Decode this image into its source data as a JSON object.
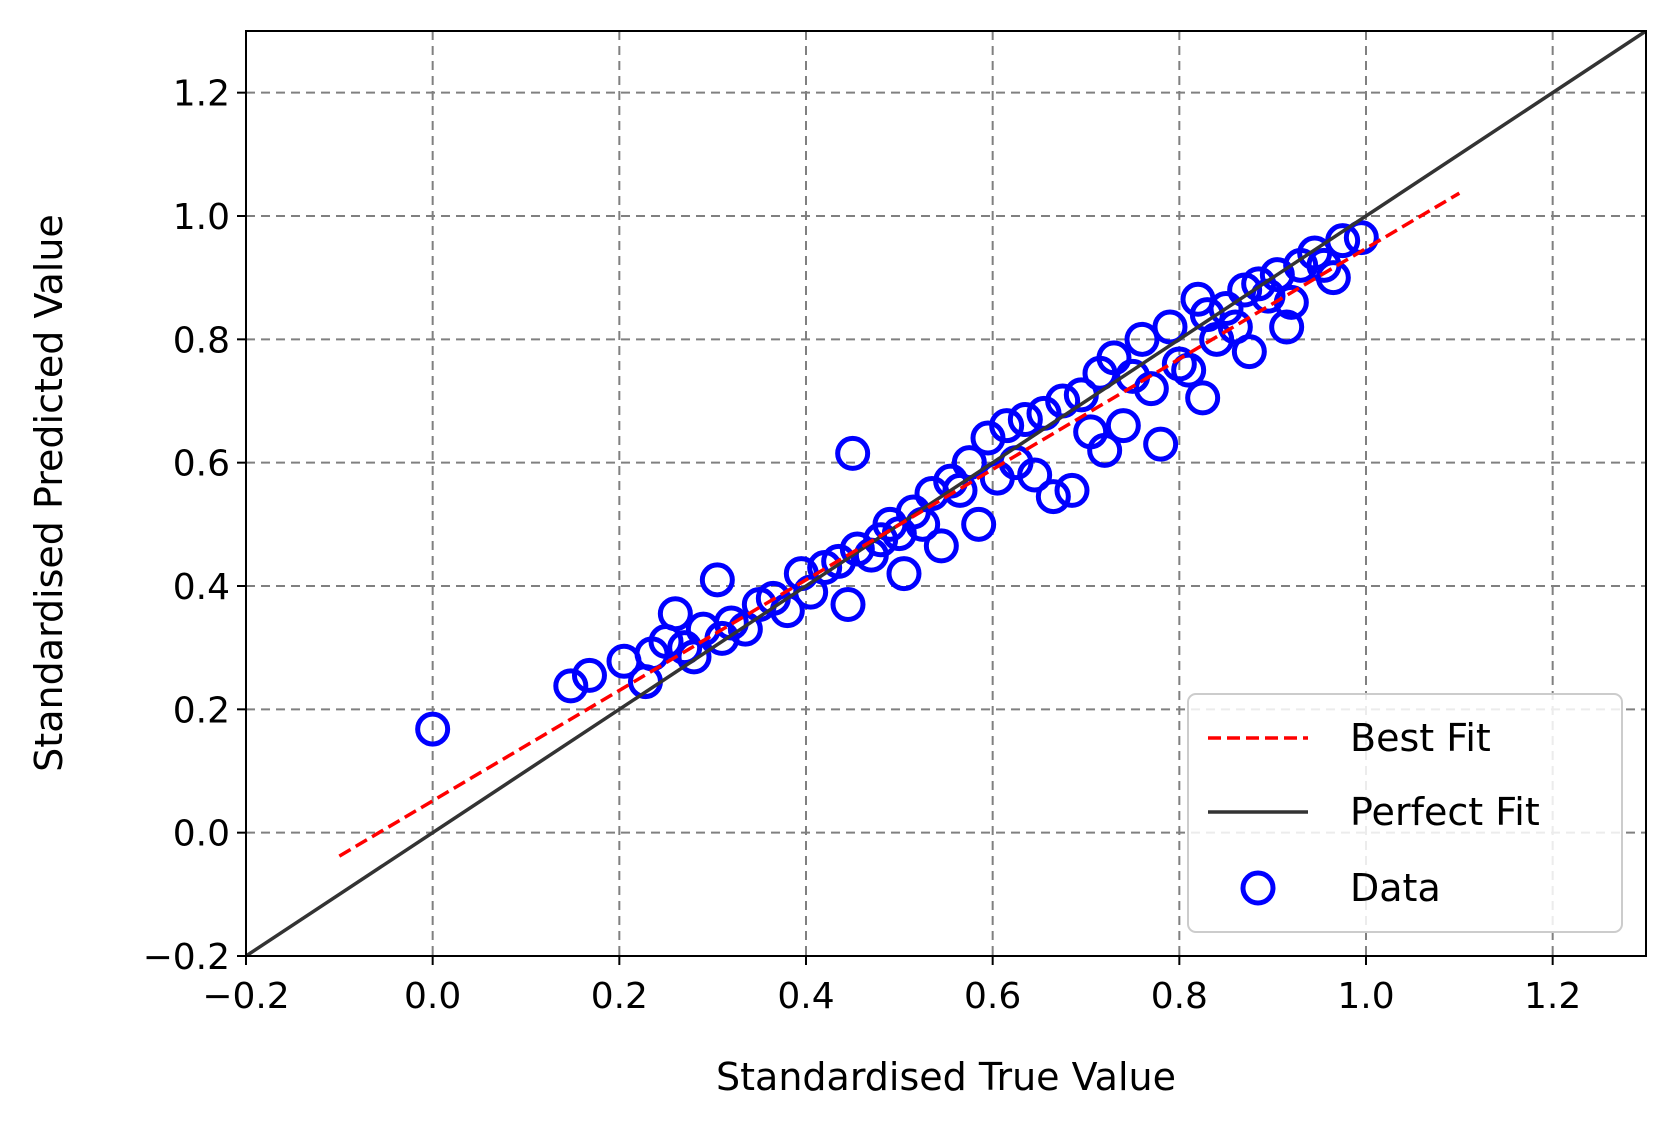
{
  "chart_data": {
    "type": "scatter",
    "xlabel": "Standardised True Value",
    "ylabel": "Standardised Predicted Value",
    "xlim": [
      -0.2,
      1.3
    ],
    "ylim": [
      -0.2,
      1.3
    ],
    "xticks": [
      -0.2,
      0.0,
      0.2,
      0.4,
      0.6,
      0.8,
      1.0,
      1.2
    ],
    "yticks": [
      -0.2,
      0.0,
      0.2,
      0.4,
      0.6,
      0.8,
      1.0,
      1.2
    ],
    "xtick_labels": [
      "−0.2",
      "0.0",
      "0.2",
      "0.4",
      "0.6",
      "0.8",
      "1.0",
      "1.2"
    ],
    "ytick_labels": [
      "−0.2",
      "0.0",
      "0.2",
      "0.4",
      "0.6",
      "0.8",
      "1.0",
      "1.2"
    ],
    "grid": true,
    "legend_position": "lower-right",
    "series": [
      {
        "name": "Best Fit",
        "kind": "line",
        "style": "dashed",
        "color": "#ff0000",
        "x": [
          -0.1,
          1.1
        ],
        "y": [
          -0.038,
          1.037
        ]
      },
      {
        "name": "Perfect Fit",
        "kind": "line",
        "style": "solid",
        "color": "#333333",
        "x": [
          -0.2,
          1.3
        ],
        "y": [
          -0.2,
          1.3
        ]
      },
      {
        "name": "Data",
        "kind": "scatter",
        "marker": "hollow-circle",
        "color": "#0000ff",
        "points": [
          [
            0.0,
            0.168
          ],
          [
            0.148,
            0.238
          ],
          [
            0.168,
            0.255
          ],
          [
            0.205,
            0.278
          ],
          [
            0.228,
            0.245
          ],
          [
            0.235,
            0.29
          ],
          [
            0.25,
            0.31
          ],
          [
            0.26,
            0.355
          ],
          [
            0.27,
            0.3
          ],
          [
            0.28,
            0.285
          ],
          [
            0.29,
            0.33
          ],
          [
            0.305,
            0.41
          ],
          [
            0.31,
            0.315
          ],
          [
            0.32,
            0.34
          ],
          [
            0.335,
            0.33
          ],
          [
            0.35,
            0.37
          ],
          [
            0.365,
            0.38
          ],
          [
            0.38,
            0.36
          ],
          [
            0.395,
            0.42
          ],
          [
            0.405,
            0.39
          ],
          [
            0.42,
            0.43
          ],
          [
            0.435,
            0.44
          ],
          [
            0.445,
            0.37
          ],
          [
            0.45,
            0.615
          ],
          [
            0.455,
            0.46
          ],
          [
            0.47,
            0.45
          ],
          [
            0.48,
            0.475
          ],
          [
            0.49,
            0.5
          ],
          [
            0.5,
            0.485
          ],
          [
            0.505,
            0.42
          ],
          [
            0.515,
            0.52
          ],
          [
            0.525,
            0.5
          ],
          [
            0.535,
            0.55
          ],
          [
            0.545,
            0.465
          ],
          [
            0.555,
            0.57
          ],
          [
            0.565,
            0.555
          ],
          [
            0.575,
            0.6
          ],
          [
            0.585,
            0.5
          ],
          [
            0.595,
            0.64
          ],
          [
            0.605,
            0.575
          ],
          [
            0.615,
            0.66
          ],
          [
            0.625,
            0.6
          ],
          [
            0.635,
            0.67
          ],
          [
            0.645,
            0.58
          ],
          [
            0.655,
            0.68
          ],
          [
            0.665,
            0.545
          ],
          [
            0.675,
            0.7
          ],
          [
            0.685,
            0.555
          ],
          [
            0.695,
            0.71
          ],
          [
            0.705,
            0.65
          ],
          [
            0.715,
            0.745
          ],
          [
            0.72,
            0.62
          ],
          [
            0.73,
            0.77
          ],
          [
            0.74,
            0.66
          ],
          [
            0.75,
            0.74
          ],
          [
            0.76,
            0.8
          ],
          [
            0.77,
            0.72
          ],
          [
            0.78,
            0.63
          ],
          [
            0.79,
            0.82
          ],
          [
            0.8,
            0.76
          ],
          [
            0.81,
            0.75
          ],
          [
            0.82,
            0.865
          ],
          [
            0.825,
            0.705
          ],
          [
            0.83,
            0.84
          ],
          [
            0.84,
            0.8
          ],
          [
            0.85,
            0.85
          ],
          [
            0.86,
            0.82
          ],
          [
            0.87,
            0.88
          ],
          [
            0.875,
            0.78
          ],
          [
            0.885,
            0.89
          ],
          [
            0.895,
            0.87
          ],
          [
            0.905,
            0.905
          ],
          [
            0.915,
            0.82
          ],
          [
            0.92,
            0.86
          ],
          [
            0.93,
            0.92
          ],
          [
            0.945,
            0.94
          ],
          [
            0.955,
            0.92
          ],
          [
            0.965,
            0.9
          ],
          [
            0.975,
            0.96
          ],
          [
            0.995,
            0.965
          ]
        ]
      }
    ]
  }
}
